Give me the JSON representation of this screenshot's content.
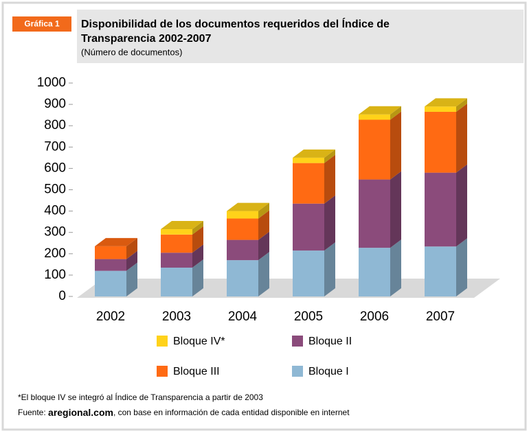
{
  "badge": "Gráfica 1",
  "chart_data": {
    "type": "bar3d_stacked",
    "title": "Disponibilidad de los documentos requeridos del Índice de Transparencia 2002-2007",
    "title_lines": [
      "Disponibilidad de los documentos requeridos del Índice de",
      "Transparencia 2002-2007"
    ],
    "subtitle": "(Número de documentos)",
    "categories": [
      "2002",
      "2003",
      "2004",
      "2005",
      "2006",
      "2007"
    ],
    "series": [
      {
        "name": "Bloque I",
        "color": "#8fb8d4",
        "values": [
          120,
          135,
          170,
          215,
          228,
          234
        ]
      },
      {
        "name": "Bloque II",
        "color": "#8b4b7b",
        "values": [
          55,
          70,
          95,
          220,
          320,
          346
        ]
      },
      {
        "name": "Bloque III",
        "color": "#ff6a13",
        "values": [
          60,
          85,
          100,
          190,
          280,
          285
        ]
      },
      {
        "name": "Bloque IV*",
        "color": "#ffd21a",
        "values": [
          0,
          25,
          35,
          25,
          25,
          25
        ]
      }
    ],
    "ylim": [
      0,
      1000
    ],
    "yticks": [
      0,
      100,
      200,
      300,
      400,
      500,
      600,
      700,
      800,
      900,
      1000
    ]
  },
  "footnote": "*El bloque IV se integró al Índice de Transparencia a partir de 2003",
  "source": {
    "prefix": "Fuente: ",
    "site": "aregional.com",
    "rest": ", con base en información de cada entidad disponible en internet"
  }
}
